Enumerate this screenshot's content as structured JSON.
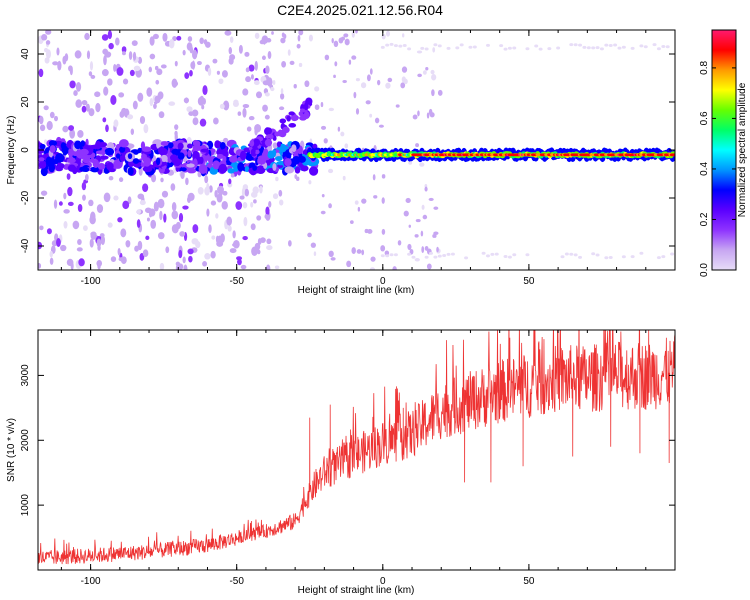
{
  "title": "C2E4.2025.021.12.56.R04",
  "colors": {
    "snr_line": "#ee3333",
    "colormap": [
      "#e7ddf7",
      "#c7a6f2",
      "#8e33ff",
      "#5a00ff",
      "#0000ff",
      "#0096ff",
      "#00ffff",
      "#00ff66",
      "#66ff00",
      "#ffff00",
      "#ff9900",
      "#ff0000",
      "#ff1a70"
    ]
  },
  "chart_data": [
    {
      "type": "heatmap",
      "xlabel": "Height of straight line (km)",
      "ylabel": "Frequency (Hz)",
      "xlim": [
        -118,
        100
      ],
      "ylim": [
        -50,
        50
      ],
      "xticks": [
        -100,
        -50,
        0,
        50
      ],
      "yticks": [
        -40,
        -20,
        0,
        20,
        40
      ],
      "colorbar": {
        "label": "Normalized spectral amplitude",
        "range": [
          0.0,
          0.95
        ],
        "ticks": [
          0.0,
          0.2,
          0.4,
          0.6,
          0.8
        ]
      },
      "features": [
        {
          "x_range": [
            -118,
            -25
          ],
          "freq_center": -3,
          "freq_halfwidth": 6,
          "amplitude": 0.3
        },
        {
          "x_range": [
            -25,
            100
          ],
          "freq_center": -2,
          "freq_halfwidth": 2,
          "amplitude": 0.9
        },
        {
          "x_range": [
            -118,
            -70
          ],
          "freq_range": [
            -50,
            50
          ],
          "amplitude": 0.05
        }
      ]
    },
    {
      "type": "line",
      "xlabel": "Height of straight line (km)",
      "ylabel": "SNR (10 * v/v)",
      "xlim": [
        -118,
        100
      ],
      "ylim": [
        0,
        3700
      ],
      "xticks": [
        -100,
        -50,
        0,
        50
      ],
      "yticks": [
        1000,
        2000,
        3000
      ],
      "trend": {
        "x": [
          -118,
          -100,
          -80,
          -60,
          -40,
          -30,
          -25,
          -20,
          -10,
          0,
          10,
          20,
          30,
          40,
          50,
          60,
          70,
          80,
          90,
          100
        ],
        "y": [
          180,
          220,
          280,
          380,
          600,
          750,
          1200,
          1500,
          1750,
          1950,
          2100,
          2450,
          2600,
          2750,
          2850,
          2950,
          2950,
          3000,
          3000,
          3050
        ]
      },
      "spikes": [
        {
          "x": -25,
          "y": 2350
        },
        {
          "x": -18,
          "y": 2550
        },
        {
          "x": 7,
          "y": 2500
        },
        {
          "x": 39,
          "y": 3000
        },
        {
          "x": 41,
          "y": 2700
        },
        {
          "x": 91,
          "y": 3700
        }
      ],
      "dips": [
        {
          "x": 28,
          "y": 1350
        },
        {
          "x": 37,
          "y": 1350
        },
        {
          "x": 48,
          "y": 1600
        },
        {
          "x": 65,
          "y": 1750
        },
        {
          "x": 78,
          "y": 1900
        },
        {
          "x": 88,
          "y": 1800
        },
        {
          "x": 98,
          "y": 1650
        }
      ]
    }
  ]
}
